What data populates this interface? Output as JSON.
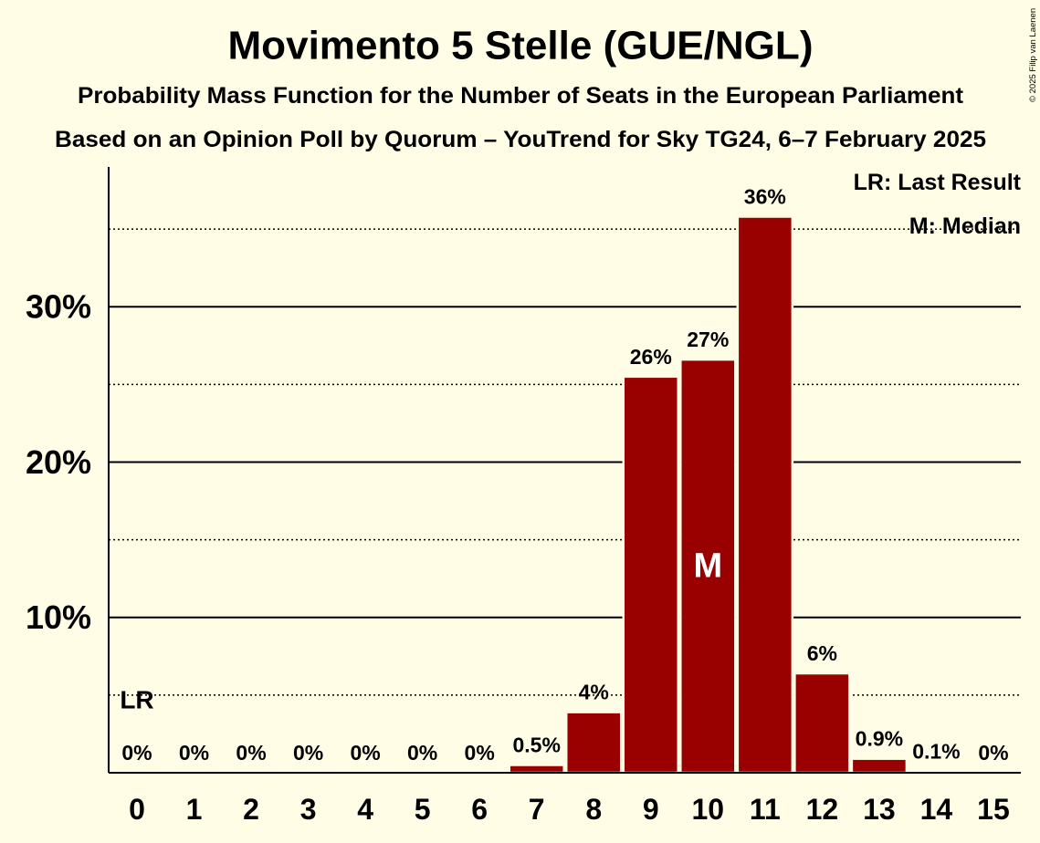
{
  "chart_data": {
    "type": "bar",
    "title": "Movimento 5 Stelle (GUE/NGL)",
    "subtitle": "Probability Mass Function for the Number of Seats in the European Parliament",
    "source_line": "Based on an Opinion Poll by Quorum – YouTrend for Sky TG24, 6–7 February 2025",
    "categories": [
      "0",
      "1",
      "2",
      "3",
      "4",
      "5",
      "6",
      "7",
      "8",
      "9",
      "10",
      "11",
      "12",
      "13",
      "14",
      "15"
    ],
    "values": [
      0,
      0,
      0,
      0,
      0,
      0,
      0,
      0.5,
      3.9,
      25.5,
      26.6,
      35.8,
      6.4,
      0.9,
      0.1,
      0
    ],
    "value_labels": [
      "0%",
      "0%",
      "0%",
      "0%",
      "0%",
      "0%",
      "0%",
      "0.5%",
      "4%",
      "26%",
      "27%",
      "36%",
      "6%",
      "0.9%",
      "0.1%",
      "0%"
    ],
    "ylim": [
      0,
      39
    ],
    "yticks": [
      10,
      20,
      30
    ],
    "ytick_labels": [
      "10%",
      "20%",
      "30%"
    ],
    "minor_gridlines": [
      5,
      15,
      25,
      35
    ],
    "legend": [
      "LR: Last Result",
      "M: Median"
    ],
    "annotations": {
      "last_result": {
        "category_index": 0,
        "label": "LR"
      },
      "median": {
        "category_index": 10,
        "label": "M"
      }
    }
  },
  "copyright": "© 2025 Filip van Laenen",
  "colors": {
    "background": "#FFFDE6",
    "bar": "#990000",
    "grid": "#000000",
    "axis": "#000000",
    "median_label": "#FFFFFF"
  }
}
